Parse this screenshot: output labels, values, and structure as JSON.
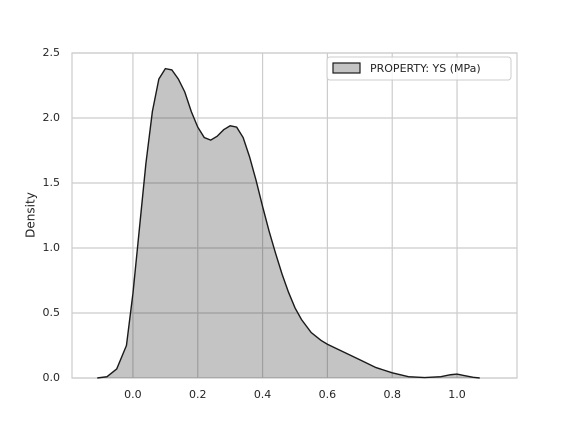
{
  "chart_data": {
    "type": "area",
    "ylabel": "Density",
    "x": [
      -0.11,
      -0.08,
      -0.05,
      -0.02,
      0.0,
      0.02,
      0.04,
      0.06,
      0.08,
      0.1,
      0.12,
      0.14,
      0.16,
      0.18,
      0.2,
      0.22,
      0.24,
      0.26,
      0.28,
      0.3,
      0.32,
      0.34,
      0.36,
      0.38,
      0.4,
      0.42,
      0.44,
      0.46,
      0.48,
      0.5,
      0.52,
      0.55,
      0.58,
      0.6,
      0.65,
      0.7,
      0.75,
      0.8,
      0.85,
      0.9,
      0.95,
      0.98,
      1.0,
      1.02,
      1.05,
      1.07
    ],
    "series": [
      {
        "name": "PROPERTY: YS (MPa)",
        "color": "#1a1a1a",
        "values": [
          0.0,
          0.01,
          0.07,
          0.25,
          0.65,
          1.15,
          1.65,
          2.05,
          2.3,
          2.38,
          2.37,
          2.3,
          2.2,
          2.05,
          1.93,
          1.85,
          1.83,
          1.86,
          1.91,
          1.94,
          1.93,
          1.85,
          1.7,
          1.52,
          1.32,
          1.13,
          0.96,
          0.8,
          0.66,
          0.54,
          0.45,
          0.35,
          0.29,
          0.26,
          0.2,
          0.14,
          0.08,
          0.04,
          0.01,
          0.003,
          0.01,
          0.025,
          0.03,
          0.02,
          0.005,
          0.0
        ]
      }
    ],
    "xlim": [
      -0.188,
      1.185
    ],
    "xticks": [
      {
        "value": 0,
        "label": "0.0"
      },
      0.2,
      0.4,
      0.6,
      0.8,
      {
        "value": 1,
        "label": "1.0"
      }
    ],
    "ylim": [
      0,
      2.5
    ],
    "yticks": [
      {
        "value": 0,
        "label": "0.0"
      },
      0.5,
      {
        "value": 1,
        "label": "1.0"
      },
      1.5,
      {
        "value": 2,
        "label": "2.0"
      },
      2.5
    ],
    "grid": true,
    "legend": "upper right"
  }
}
